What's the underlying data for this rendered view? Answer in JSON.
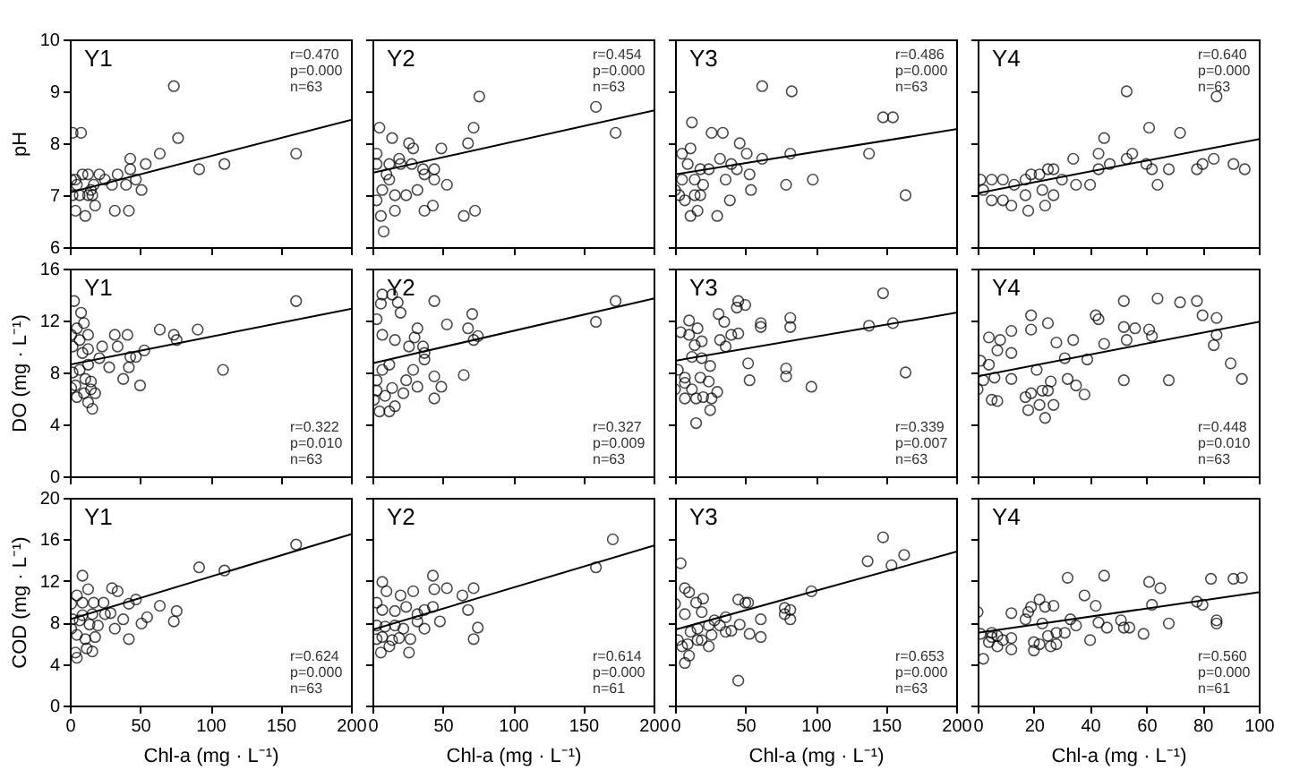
{
  "chart_data": [
    {
      "type": "scatter",
      "title": "Y1",
      "ylabel": "pH",
      "tick_labels": "y",
      "xlim": [
        0,
        200
      ],
      "xticks": [
        0,
        50,
        100,
        150,
        200
      ],
      "ylim": [
        6,
        10
      ],
      "yticks": [
        6,
        7,
        8,
        9,
        10
      ],
      "annotations": [
        "r=0.470",
        "p=0.000",
        "n=63"
      ],
      "series": [
        {
          "type": "scatter",
          "marker": "circle",
          "color": "#000000",
          "x": [
            2,
            8,
            74,
            77,
            64,
            54,
            43,
            43,
            47,
            51,
            32,
            42,
            92,
            110,
            161,
            4,
            9,
            13,
            21,
            25,
            34,
            40,
            30,
            17,
            2,
            7,
            13,
            4,
            11,
            18,
            15,
            5,
            1,
            16
          ],
          "values": [
            8.2,
            8.2,
            9.1,
            8.1,
            7.8,
            7.6,
            7.7,
            7.5,
            7.3,
            7.1,
            6.7,
            6.7,
            7.5,
            7.6,
            7.8,
            7.3,
            7.4,
            7.4,
            7.4,
            7.3,
            7.4,
            7.2,
            7.2,
            7.2,
            7.0,
            7.0,
            7.0,
            6.7,
            6.6,
            6.8,
            7.1,
            7.2,
            7.3,
            7.0
          ]
        },
        {
          "type": "line",
          "color": "#000000",
          "x": [
            0,
            200
          ],
          "values": [
            7.05,
            8.45
          ]
        }
      ]
    },
    {
      "type": "scatter",
      "title": "Y2",
      "tick_labels": false,
      "xlim": [
        0,
        200
      ],
      "xticks": [
        0,
        50,
        100,
        150,
        200
      ],
      "ylim": [
        6,
        10
      ],
      "yticks": [
        6,
        7,
        8,
        9,
        10
      ],
      "annotations": [
        "r=0.454",
        "p=0.000",
        "n=63"
      ],
      "series": [
        {
          "type": "scatter",
          "marker": "circle",
          "color": "#000000",
          "x": [
            5,
            14,
            26,
            29,
            49,
            76,
            72,
            68,
            159,
            173,
            65,
            73,
            37,
            43,
            53,
            8,
            6,
            3,
            3,
            12,
            20,
            28,
            36,
            44,
            44,
            32,
            24,
            16,
            7,
            12,
            19,
            10,
            3,
            16,
            37
          ],
          "values": [
            8.3,
            8.1,
            8.0,
            7.9,
            7.9,
            8.9,
            8.3,
            8.0,
            8.7,
            8.2,
            6.6,
            6.7,
            6.7,
            6.8,
            7.2,
            6.3,
            6.6,
            7.8,
            7.6,
            7.6,
            7.6,
            7.6,
            7.5,
            7.5,
            7.3,
            7.1,
            7.0,
            7.0,
            7.1,
            7.3,
            7.7,
            7.4,
            6.9,
            6.7,
            7.4
          ]
        },
        {
          "type": "line",
          "color": "#000000",
          "x": [
            0,
            200
          ],
          "values": [
            7.43,
            8.63
          ]
        }
      ]
    },
    {
      "type": "scatter",
      "title": "Y3",
      "tick_labels": false,
      "xlim": [
        0,
        200
      ],
      "xticks": [
        0,
        50,
        100,
        150,
        200
      ],
      "ylim": [
        6,
        10
      ],
      "yticks": [
        6,
        7,
        8,
        9,
        10
      ],
      "annotations": [
        "r=0.486",
        "p=0.000",
        "n=63"
      ],
      "series": [
        {
          "type": "scatter",
          "marker": "circle",
          "color": "#000000",
          "x": [
            62,
            83,
            12,
            26,
            34,
            148,
            155,
            138,
            82,
            62,
            46,
            51,
            98,
            79,
            54,
            164,
            30,
            39,
            11,
            16,
            11,
            5,
            0,
            3,
            7,
            14,
            20,
            24,
            9,
            18,
            32,
            36,
            44,
            53,
            40,
            14,
            5,
            18
          ],
          "values": [
            9.1,
            9.0,
            8.4,
            8.2,
            8.2,
            8.5,
            8.5,
            7.8,
            7.8,
            7.7,
            8.0,
            7.8,
            7.3,
            7.2,
            7.1,
            7.0,
            6.6,
            6.9,
            6.6,
            6.7,
            7.9,
            7.8,
            7.1,
            7.0,
            6.9,
            7.0,
            7.2,
            7.5,
            7.6,
            7.5,
            7.7,
            7.3,
            7.5,
            7.4,
            7.6,
            7.3,
            7.3,
            7.0
          ]
        },
        {
          "type": "line",
          "color": "#000000",
          "x": [
            0,
            200
          ],
          "values": [
            7.4,
            8.27
          ]
        }
      ]
    },
    {
      "type": "scatter",
      "title": "Y4",
      "tick_labels": false,
      "xlim": [
        0,
        100
      ],
      "xticks": [
        0,
        20,
        40,
        60,
        80,
        100
      ],
      "ylim": [
        6,
        10
      ],
      "yticks": [
        6,
        7,
        8,
        9,
        10
      ],
      "annotations": [
        "r=0.640",
        "p=0.000",
        "n=63"
      ],
      "series": [
        {
          "type": "scatter",
          "marker": "circle",
          "color": "#000000",
          "x": [
            53,
            85,
            61,
            72,
            45,
            34,
            43,
            47,
            53,
            55,
            60,
            62,
            68,
            64,
            78,
            80,
            84,
            91,
            95,
            43,
            1,
            5,
            9,
            13,
            17,
            19,
            22,
            25,
            27,
            30,
            35,
            40,
            5,
            9,
            12,
            18,
            24,
            2,
            23,
            27,
            17
          ],
          "values": [
            9.0,
            8.9,
            8.3,
            8.2,
            8.1,
            7.7,
            7.8,
            7.6,
            7.7,
            7.8,
            7.6,
            7.5,
            7.5,
            7.2,
            7.5,
            7.6,
            7.7,
            7.6,
            7.5,
            7.5,
            7.3,
            7.3,
            7.3,
            7.2,
            7.3,
            7.4,
            7.4,
            7.5,
            7.5,
            7.3,
            7.2,
            7.2,
            6.9,
            6.9,
            6.8,
            6.7,
            6.8,
            7.1,
            7.1,
            7.0,
            7.0
          ]
        },
        {
          "type": "line",
          "color": "#000000",
          "x": [
            0,
            100
          ],
          "values": [
            7.04,
            8.08
          ]
        }
      ]
    },
    {
      "type": "scatter",
      "title": "Y1",
      "ylabel": "DO (mg · L⁻¹)",
      "tick_labels": "y",
      "xlim": [
        0,
        200
      ],
      "xticks": [
        0,
        50,
        100,
        150,
        200
      ],
      "ylim": [
        0,
        16
      ],
      "yticks": [
        0,
        4,
        8,
        12,
        16
      ],
      "annotations": [
        "r=0.322",
        "p=0.010",
        "n=63"
      ],
      "series": [
        {
          "type": "scatter",
          "marker": "circle",
          "color": "#000000",
          "x": [
            161,
            3,
            8,
            10,
            5,
            1,
            13,
            7,
            2,
            9,
            13,
            23,
            32,
            34,
            41,
            64,
            74,
            76,
            91,
            109,
            53,
            43,
            47,
            42,
            28,
            38,
            50,
            21,
            13,
            7,
            2,
            1,
            5,
            10,
            13,
            16,
            15,
            11,
            15,
            18,
            4
          ],
          "values": [
            13.5,
            13.5,
            12.6,
            11.8,
            11.4,
            10.9,
            10.9,
            10.5,
            10.0,
            9.5,
            9.8,
            10.0,
            10.9,
            10.0,
            10.9,
            11.3,
            10.9,
            10.5,
            11.3,
            8.2,
            9.7,
            9.2,
            9.2,
            8.4,
            8.4,
            7.5,
            7.0,
            9.1,
            8.6,
            8.2,
            8.0,
            6.8,
            6.1,
            6.4,
            5.7,
            5.2,
            6.7,
            7.5,
            7.3,
            6.4,
            7.0
          ]
        },
        {
          "type": "line",
          "color": "#000000",
          "x": [
            0,
            200
          ],
          "values": [
            8.6,
            12.9
          ]
        }
      ]
    },
    {
      "type": "scatter",
      "title": "Y2",
      "tick_labels": false,
      "xlim": [
        0,
        200
      ],
      "xticks": [
        0,
        50,
        100,
        150,
        200
      ],
      "ylim": [
        0,
        16
      ],
      "yticks": [
        0,
        4,
        8,
        12,
        16
      ],
      "annotations": [
        "r=0.327",
        "p=0.009",
        "n=63"
      ],
      "series": [
        {
          "type": "scatter",
          "marker": "circle",
          "color": "#000000",
          "x": [
            173,
            159,
            7,
            14,
            18,
            6,
            44,
            20,
            3,
            71,
            53,
            68,
            75,
            72,
            32,
            30,
            7,
            16,
            26,
            36,
            37,
            37,
            29,
            12,
            7,
            3,
            24,
            44,
            49,
            65,
            32,
            22,
            44,
            16,
            12,
            5,
            1,
            14,
            9,
            3
          ],
          "values": [
            13.5,
            11.9,
            14.0,
            14.0,
            13.4,
            13.3,
            13.5,
            12.6,
            12.1,
            12.5,
            11.7,
            11.4,
            10.8,
            10.5,
            11.4,
            10.7,
            10.9,
            10.5,
            10.0,
            10.0,
            9.5,
            9.0,
            8.2,
            8.6,
            8.2,
            7.4,
            7.4,
            7.7,
            6.9,
            7.8,
            6.9,
            6.4,
            6.0,
            5.4,
            5.0,
            5.0,
            5.9,
            6.8,
            6.2,
            6.6
          ]
        },
        {
          "type": "line",
          "color": "#000000",
          "x": [
            0,
            200
          ],
          "values": [
            8.7,
            13.7
          ]
        }
      ]
    },
    {
      "type": "scatter",
      "title": "Y3",
      "tick_labels": false,
      "xlim": [
        0,
        200
      ],
      "xticks": [
        0,
        50,
        100,
        150,
        200
      ],
      "ylim": [
        0,
        16
      ],
      "yticks": [
        0,
        4,
        8,
        12,
        16
      ],
      "annotations": [
        "r=0.339",
        "p=0.007",
        "n=63"
      ],
      "series": [
        {
          "type": "scatter",
          "marker": "circle",
          "color": "#000000",
          "x": [
            148,
            155,
            138,
            164,
            97,
            82,
            82,
            61,
            61,
            79,
            79,
            45,
            50,
            44,
            31,
            35,
            32,
            40,
            36,
            45,
            52,
            53,
            10,
            4,
            10,
            16,
            19,
            14,
            12,
            19,
            25,
            2,
            7,
            18,
            24,
            0,
            7,
            15,
            20,
            26,
            30,
            25,
            15,
            7,
            12
          ],
          "values": [
            14.1,
            11.8,
            11.6,
            8.0,
            6.9,
            12.2,
            11.5,
            11.8,
            11.5,
            8.3,
            7.7,
            13.5,
            13.2,
            13.0,
            12.5,
            11.9,
            10.5,
            10.9,
            10.0,
            11.0,
            8.7,
            7.4,
            12.0,
            11.1,
            10.9,
            11.4,
            10.4,
            10.1,
            9.2,
            9.1,
            8.5,
            8.2,
            7.6,
            7.6,
            7.3,
            6.7,
            6.0,
            6.0,
            6.1,
            6.0,
            6.5,
            5.1,
            4.1,
            7.2,
            6.7
          ]
        },
        {
          "type": "line",
          "color": "#000000",
          "x": [
            0,
            200
          ],
          "values": [
            8.9,
            12.6
          ]
        }
      ]
    },
    {
      "type": "scatter",
      "title": "Y4",
      "tick_labels": false,
      "xlim": [
        0,
        100
      ],
      "xticks": [
        0,
        20,
        40,
        60,
        80,
        100
      ],
      "ylim": [
        0,
        16
      ],
      "yticks": [
        0,
        4,
        8,
        12,
        16
      ],
      "annotations": [
        "r=0.448",
        "p=0.010",
        "n=63"
      ],
      "series": [
        {
          "type": "scatter",
          "marker": "circle",
          "color": "#000000",
          "x": [
            64,
            72,
            78,
            52,
            80,
            85,
            42,
            43,
            19,
            25,
            52,
            56,
            61,
            85,
            84,
            19,
            12,
            4,
            8,
            34,
            28,
            53,
            62,
            45,
            7,
            12,
            31,
            39,
            1,
            4,
            21,
            6,
            2,
            12,
            26,
            32,
            35,
            38,
            25,
            23,
            19,
            17,
            18,
            22,
            24,
            27,
            52,
            68,
            90,
            94,
            0,
            5,
            7
          ],
          "values": [
            13.7,
            13.4,
            13.5,
            13.5,
            12.4,
            12.2,
            12.4,
            12.1,
            12.4,
            11.8,
            11.5,
            11.4,
            11.3,
            10.9,
            10.1,
            11.3,
            11.2,
            10.7,
            10.5,
            10.5,
            10.3,
            10.5,
            10.8,
            10.2,
            9.7,
            9.5,
            9.1,
            9.0,
            8.9,
            8.6,
            8.2,
            7.6,
            7.4,
            7.5,
            7.3,
            7.5,
            7.0,
            6.3,
            6.6,
            6.6,
            6.4,
            6.1,
            5.1,
            5.5,
            4.5,
            5.5,
            7.4,
            7.4,
            8.7,
            7.5,
            6.7,
            5.9,
            5.8
          ]
        },
        {
          "type": "line",
          "color": "#000000",
          "x": [
            0,
            100
          ],
          "values": [
            7.7,
            11.9
          ]
        }
      ]
    },
    {
      "type": "scatter",
      "title": "Y1",
      "xlabel": "Chl-a (mg · L⁻¹)",
      "ylabel": "COD (mg · L⁻¹)",
      "xlim": [
        0,
        200
      ],
      "xticks": [
        0,
        50,
        100,
        150,
        200
      ],
      "ylim": [
        0,
        20
      ],
      "yticks": [
        0,
        4,
        8,
        12,
        16,
        20
      ],
      "annotations": [
        "r=0.624",
        "p=0.000",
        "n=63"
      ],
      "series": [
        {
          "type": "scatter",
          "marker": "circle",
          "color": "#000000",
          "x": [
            161,
            110,
            92,
            64,
            76,
            74,
            51,
            55,
            47,
            42,
            42,
            38,
            32,
            30,
            34,
            24,
            25,
            29,
            9,
            13,
            5,
            1,
            9,
            17,
            2,
            7,
            14,
            20,
            5,
            11,
            18,
            1,
            4,
            5,
            12,
            16,
            9,
            16
          ],
          "values": [
            15.5,
            13.0,
            13.3,
            9.6,
            9.1,
            8.1,
            7.9,
            8.5,
            10.2,
            9.8,
            6.4,
            8.3,
            7.4,
            11.3,
            11.0,
            9.9,
            8.8,
            8.9,
            12.5,
            11.2,
            10.6,
            9.8,
            9.9,
            9.9,
            8.3,
            8.2,
            7.8,
            7.7,
            6.8,
            6.4,
            6.6,
            7.4,
            5.1,
            4.6,
            5.5,
            5.2,
            8.7,
            8.8
          ]
        },
        {
          "type": "line",
          "color": "#000000",
          "x": [
            0,
            200
          ],
          "values": [
            8.3,
            16.5
          ]
        }
      ]
    },
    {
      "type": "scatter",
      "title": "Y2",
      "xlabel": "Chl-a (mg · L⁻¹)",
      "tick_labels": "x",
      "xlim": [
        0,
        200
      ],
      "xticks": [
        0,
        50,
        100,
        150,
        200
      ],
      "ylim": [
        0,
        20
      ],
      "yticks": [
        0,
        4,
        8,
        12,
        16,
        20
      ],
      "annotations": [
        "r=0.614",
        "p=0.000",
        "n=61"
      ],
      "series": [
        {
          "type": "scatter",
          "marker": "circle",
          "color": "#000000",
          "x": [
            171,
            159,
            72,
            64,
            68,
            72,
            75,
            53,
            43,
            44,
            48,
            43,
            37,
            32,
            29,
            20,
            7,
            10,
            3,
            7,
            16,
            24,
            32,
            37,
            27,
            26,
            19,
            12,
            6,
            3,
            9,
            3,
            16,
            14,
            7,
            22
          ],
          "values": [
            16.0,
            13.3,
            11.3,
            10.6,
            9.2,
            6.4,
            7.5,
            11.3,
            12.5,
            11.2,
            8.1,
            9.5,
            9.2,
            8.8,
            11.0,
            10.6,
            11.9,
            11.0,
            9.9,
            9.2,
            9.1,
            9.5,
            8.1,
            7.4,
            6.4,
            5.1,
            6.5,
            5.7,
            5.1,
            6.4,
            7.6,
            7.7,
            7.7,
            6.3,
            6.6,
            7.4
          ]
        },
        {
          "type": "line",
          "color": "#000000",
          "x": [
            0,
            200
          ],
          "values": [
            7.3,
            15.4
          ]
        }
      ]
    },
    {
      "type": "scatter",
      "title": "Y3",
      "xlabel": "Chl-a (mg · L⁻¹)",
      "tick_labels": "x",
      "xlim": [
        0,
        200
      ],
      "xticks": [
        0,
        50,
        100,
        150,
        200
      ],
      "ylim": [
        0,
        20
      ],
      "yticks": [
        0,
        4,
        8,
        12,
        16,
        20
      ],
      "annotations": [
        "r=0.653",
        "p=0.000",
        "n=63"
      ],
      "series": [
        {
          "type": "scatter",
          "marker": "circle",
          "color": "#000000",
          "x": [
            148,
            163,
            154,
            137,
            97,
            78,
            78,
            82,
            82,
            61,
            61,
            52,
            50,
            45,
            46,
            53,
            45,
            4,
            7,
            10,
            20,
            15,
            7,
            0,
            19,
            36,
            36,
            40,
            28,
            32,
            24,
            16,
            11,
            2,
            5,
            9,
            24,
            19,
            7,
            10,
            26,
            16
          ],
          "values": [
            16.2,
            14.5,
            13.5,
            13.9,
            11.0,
            9.4,
            8.8,
            9.2,
            8.3,
            8.3,
            6.6,
            9.9,
            9.9,
            10.2,
            7.8,
            6.9,
            2.4,
            13.7,
            11.3,
            10.9,
            10.3,
            9.9,
            8.8,
            9.8,
            9.0,
            8.5,
            7.1,
            7.2,
            8.2,
            7.7,
            7.7,
            7.4,
            7.1,
            6.3,
            5.7,
            5.9,
            5.7,
            6.3,
            4.1,
            4.8,
            6.8,
            6.3
          ]
        },
        {
          "type": "line",
          "color": "#000000",
          "x": [
            0,
            200
          ],
          "values": [
            7.3,
            14.8
          ]
        }
      ]
    },
    {
      "type": "scatter",
      "title": "Y4",
      "xlabel": "Chl-a (mg · L⁻¹)",
      "tick_labels": "x",
      "xlim": [
        0,
        100
      ],
      "xticks": [
        0,
        20,
        40,
        60,
        80,
        100
      ],
      "ylim": [
        0,
        20
      ],
      "yticks": [
        0,
        4,
        8,
        12,
        16,
        20
      ],
      "annotations": [
        "r=0.560",
        "p=0.000",
        "n=61"
      ],
      "series": [
        {
          "type": "scatter",
          "marker": "circle",
          "color": "#000000",
          "x": [
            94,
            91,
            83,
            45,
            32,
            61,
            65,
            38,
            80,
            78,
            62,
            42,
            22,
            24,
            19,
            18,
            17,
            27,
            12,
            0,
            33,
            35,
            43,
            46,
            51,
            52,
            54,
            59,
            68,
            85,
            85,
            23,
            25,
            28,
            31,
            40,
            26,
            28,
            20,
            20,
            22,
            12,
            12,
            5,
            1,
            5,
            7,
            4,
            7,
            2,
            9
          ],
          "values": [
            12.3,
            12.2,
            12.2,
            12.5,
            12.3,
            11.9,
            11.3,
            10.6,
            9.7,
            10.0,
            9.7,
            9.6,
            10.2,
            9.5,
            9.5,
            9.0,
            8.3,
            9.6,
            8.9,
            9.0,
            8.3,
            7.7,
            8.0,
            7.5,
            8.2,
            7.5,
            7.5,
            6.9,
            7.9,
            8.2,
            7.9,
            7.9,
            6.7,
            7.0,
            7.0,
            6.3,
            5.7,
            5.9,
            6.1,
            5.3,
            5.9,
            6.5,
            5.4,
            6.6,
            6.9,
            7.0,
            6.7,
            6.1,
            5.7,
            4.5,
            6.3
          ]
        },
        {
          "type": "line",
          "color": "#000000",
          "x": [
            0,
            100
          ],
          "values": [
            7.0,
            10.9
          ]
        }
      ]
    }
  ]
}
